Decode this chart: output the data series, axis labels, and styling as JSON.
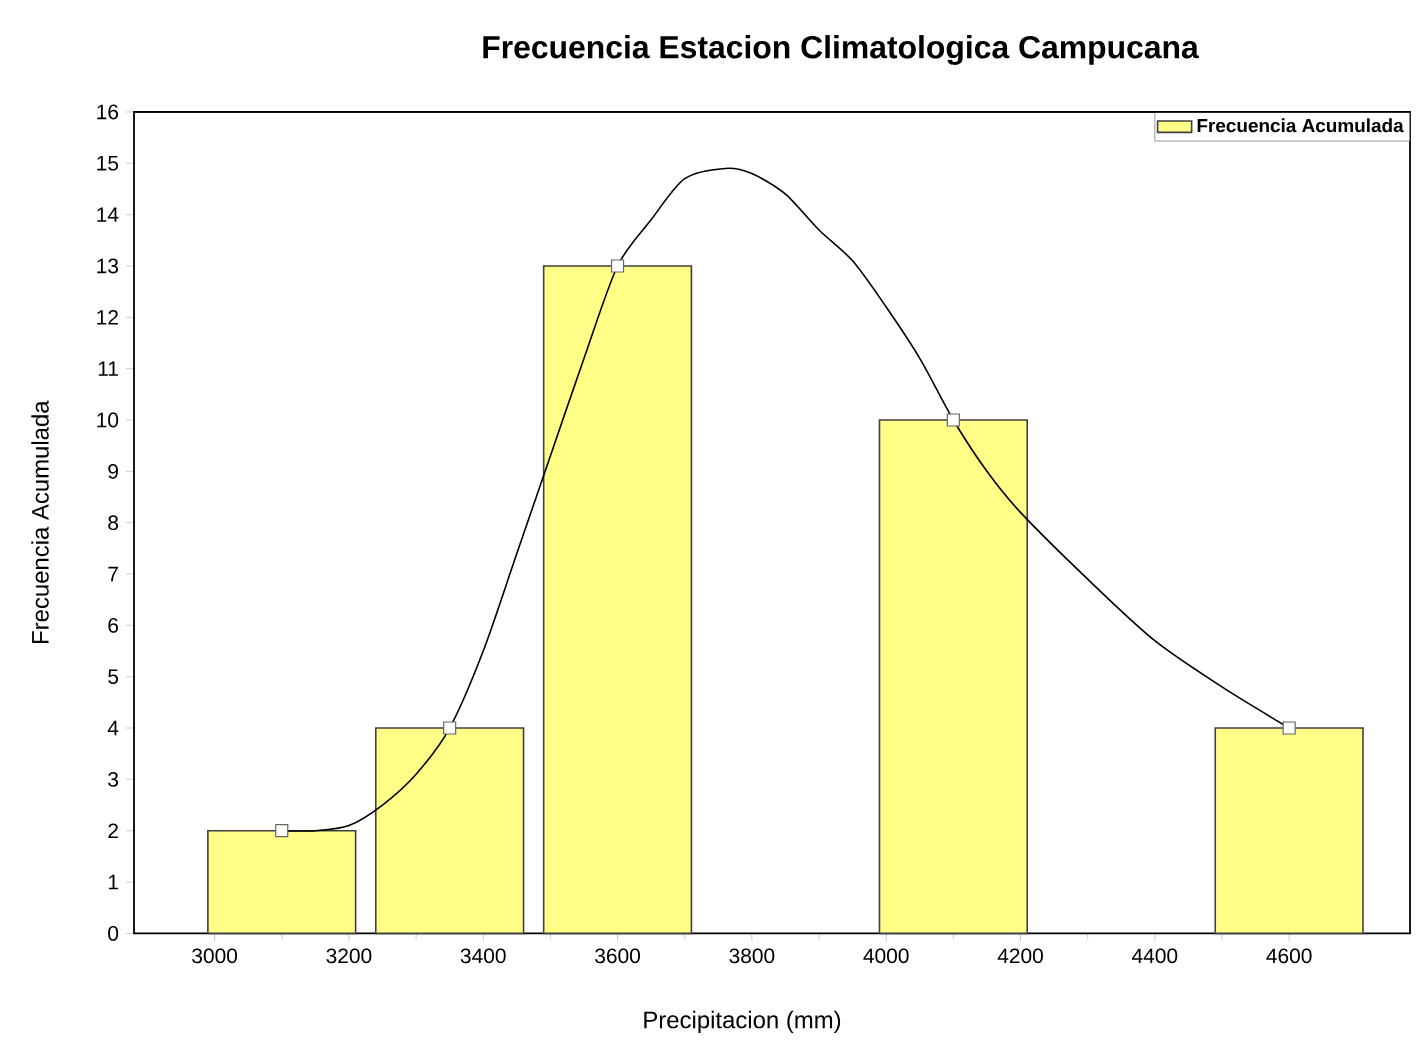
{
  "chart_data": {
    "type": "bar",
    "title": "Frecuencia Estacion Climatologica Campucana",
    "xlabel": "Precipitacion (mm)",
    "ylabel": "Frecuencia Acumulada",
    "xlim": [
      2880,
      4780
    ],
    "xticks": [
      3000,
      3200,
      3400,
      3600,
      3800,
      4000,
      4200,
      4400,
      4600
    ],
    "ylim": [
      0,
      16
    ],
    "yticks": [
      0,
      1,
      2,
      3,
      4,
      5,
      6,
      7,
      8,
      9,
      10,
      11,
      12,
      13,
      14,
      15,
      16
    ],
    "legend": "top right",
    "grid": false,
    "series": [
      {
        "name": "Frecuencia Acumulada",
        "color": "#ffff88",
        "x": [
          3100,
          3350,
          3600,
          4100,
          4600
        ],
        "values": [
          2,
          4,
          13,
          10,
          4
        ]
      },
      {
        "type": "line",
        "color": "#000000",
        "marker": "none",
        "x": [
          3100,
          3150,
          3200,
          3250,
          3300,
          3350,
          3400,
          3450,
          3500,
          3550,
          3600,
          3650,
          3700,
          3760,
          3800,
          3850,
          3900,
          3950,
          4000,
          4050,
          4100,
          4150,
          4200,
          4300,
          4400,
          4500,
          4600
        ],
        "values": [
          2,
          2.0,
          2.1,
          2.5,
          3.1,
          4,
          5.5,
          7.4,
          9.3,
          11.2,
          13,
          13.9,
          14.7,
          14.9,
          14.8,
          14.4,
          13.7,
          13.1,
          12.2,
          11.2,
          10,
          9.0,
          8.2,
          6.9,
          5.7,
          4.8,
          4
        ]
      },
      {
        "type": "scatter",
        "color": "#ffffff",
        "marker": "square",
        "x": [
          3100,
          3350,
          3600,
          4100,
          4600
        ],
        "values": [
          2,
          4,
          13,
          10,
          4
        ]
      }
    ]
  }
}
